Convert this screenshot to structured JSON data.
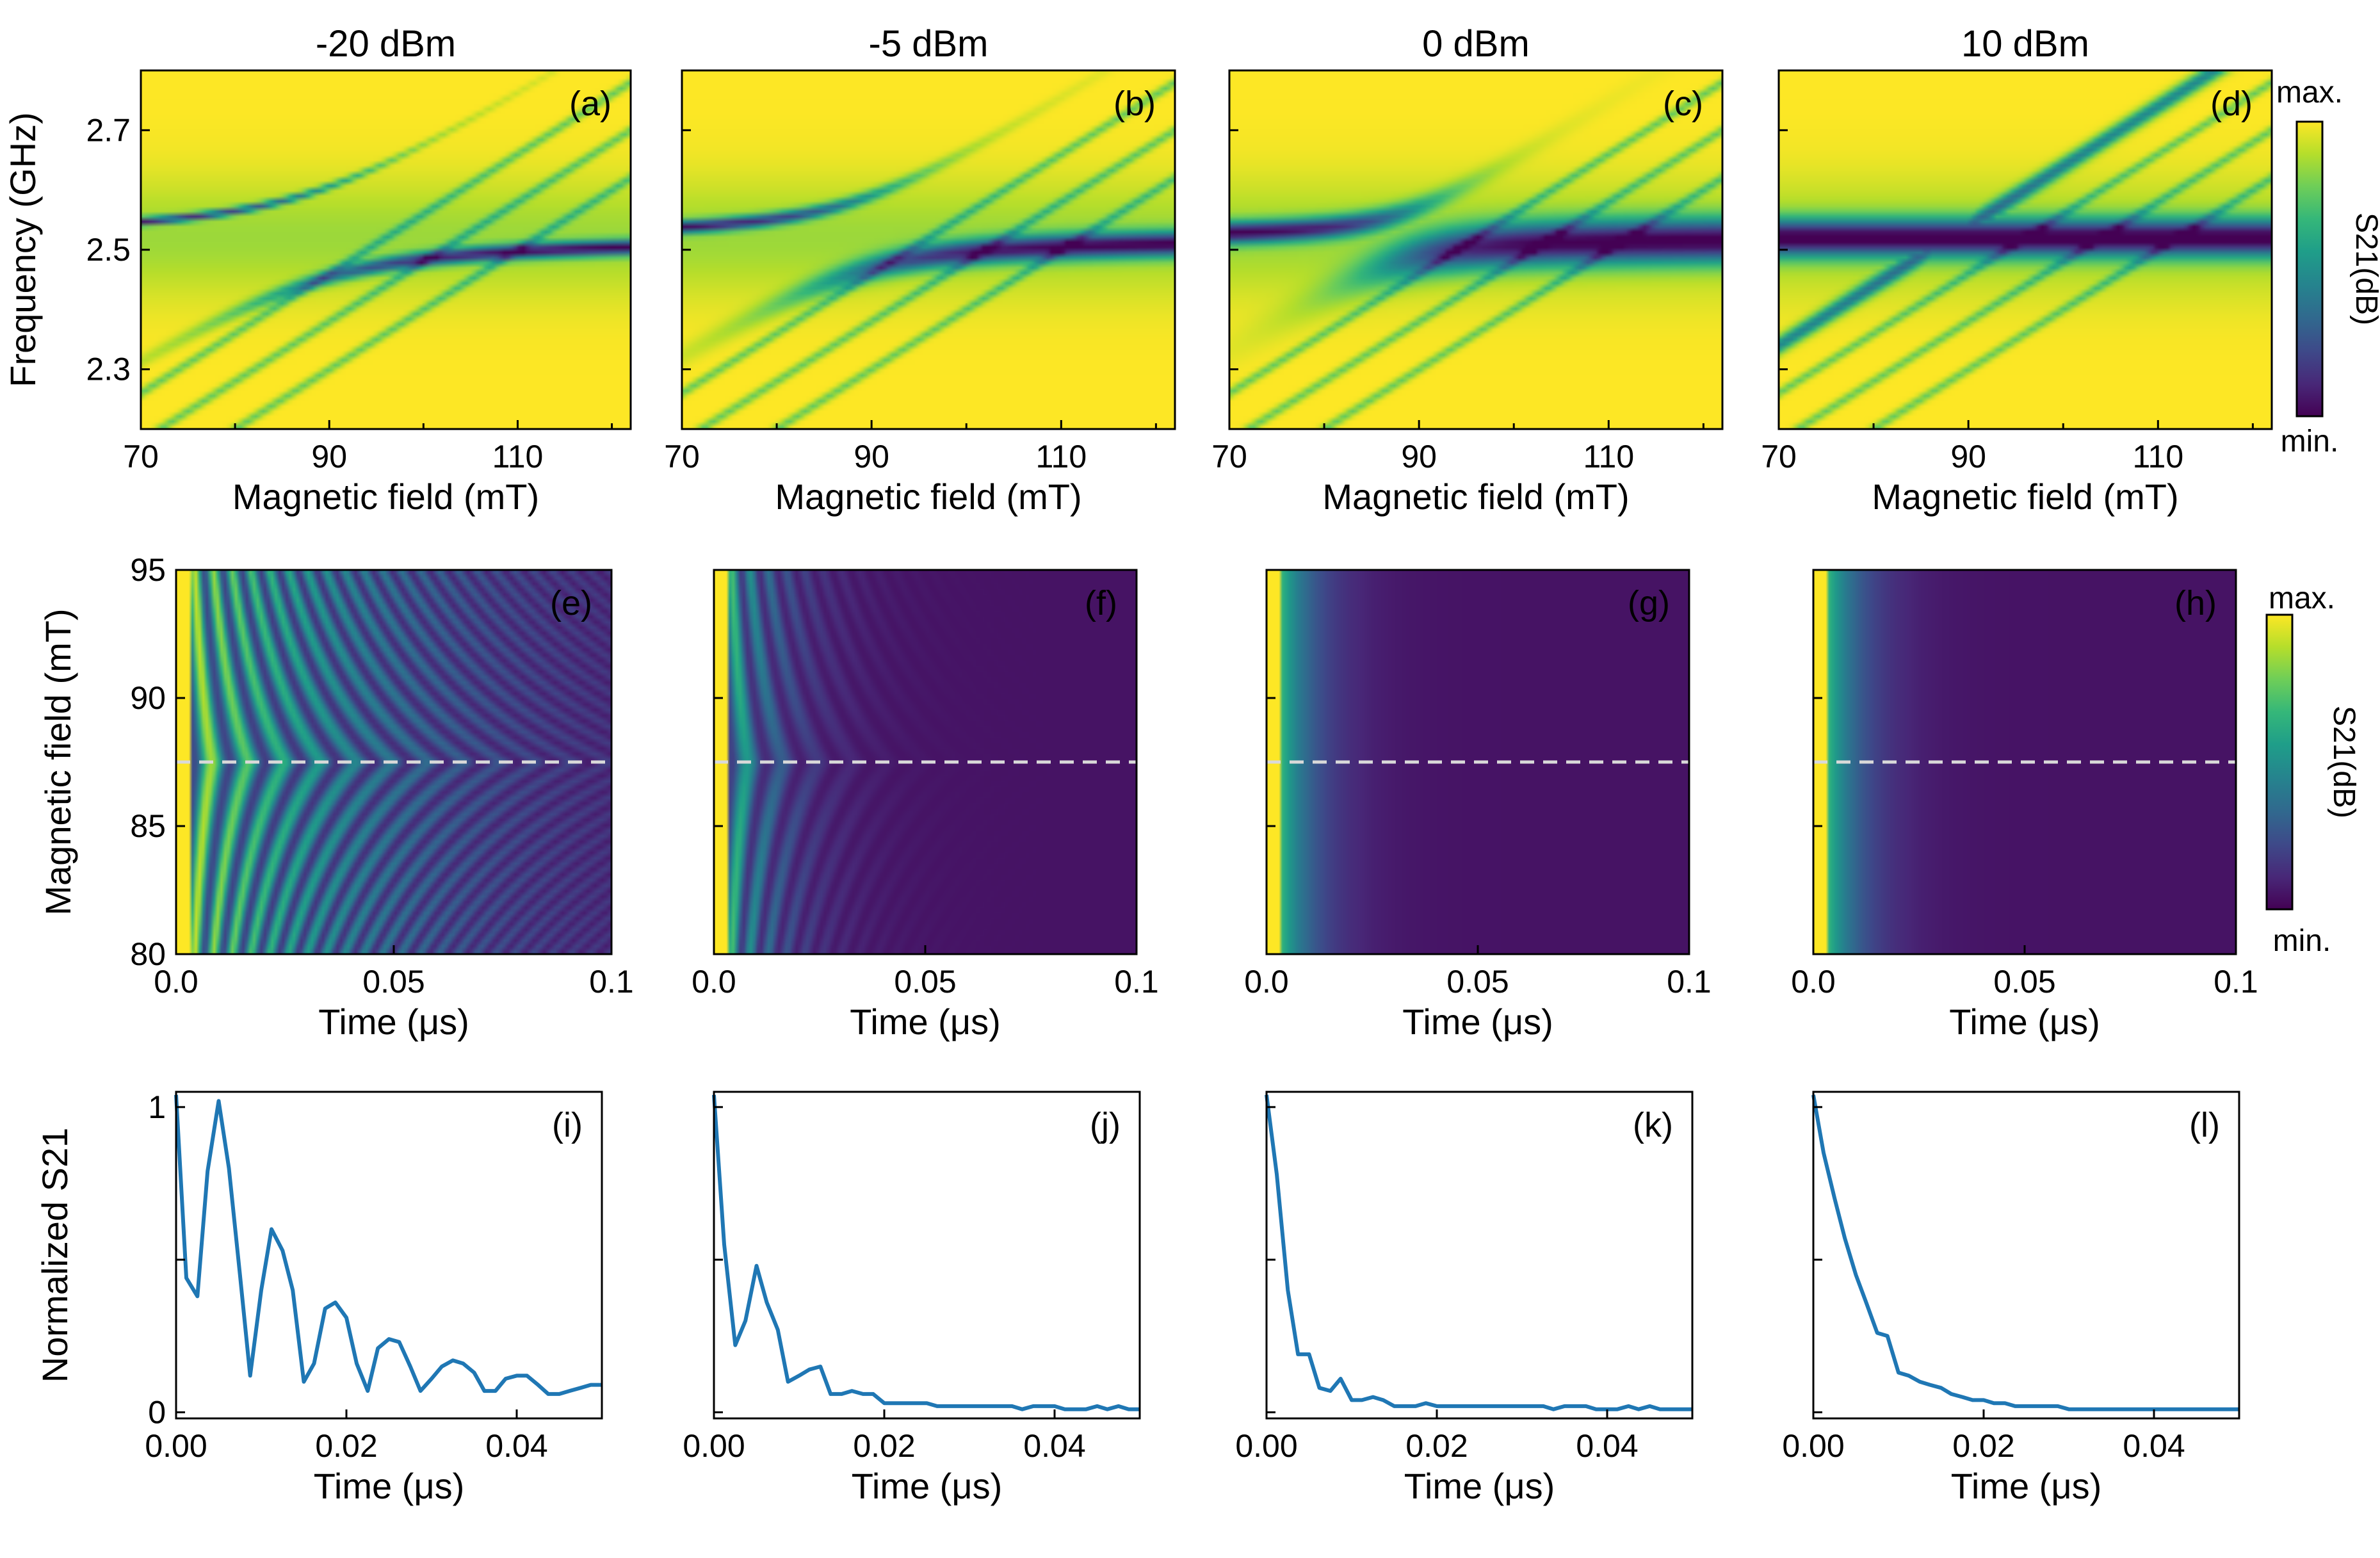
{
  "colors": {
    "cmap": [
      "#440154",
      "#482878",
      "#3e4989",
      "#31688e",
      "#26828e",
      "#1f9e89",
      "#35b779",
      "#6ece58",
      "#b5de2b",
      "#fde725"
    ],
    "line": "#1f77b4",
    "dashed": "#d9d9d9",
    "label_light": "#f4c7a1"
  },
  "chart_data": [
    {
      "type": "heatmap",
      "panel": "(a)",
      "title": "-20 dBm",
      "xlabel": "Magnetic field (mT)",
      "ylabel": "Frequency (GHz)",
      "xlim": [
        70,
        122
      ],
      "ylim": [
        2.2,
        2.8
      ],
      "xticks": [
        "70",
        "90",
        "110"
      ],
      "yticks": [
        "2.3",
        "2.5",
        "2.7"
      ],
      "cavity_frequency_ghz": 2.52,
      "crossing_field_mT": 88,
      "coupling_ghz": 0.075,
      "linewidth": 0.012
    },
    {
      "type": "heatmap",
      "panel": "(b)",
      "title": "-5 dBm",
      "xlabel": "Magnetic field (mT)",
      "ylabel": "",
      "xlim": [
        70,
        122
      ],
      "ylim": [
        2.2,
        2.8
      ],
      "xticks": [
        "70",
        "90",
        "110"
      ],
      "yticks": [],
      "cavity_frequency_ghz": 2.52,
      "crossing_field_mT": 88,
      "coupling_ghz": 0.06,
      "linewidth": 0.02
    },
    {
      "type": "heatmap",
      "panel": "(c)",
      "title": "0 dBm",
      "xlabel": "Magnetic field (mT)",
      "ylabel": "",
      "xlim": [
        70,
        122
      ],
      "ylim": [
        2.2,
        2.8
      ],
      "xticks": [
        "70",
        "90",
        "110"
      ],
      "yticks": [],
      "cavity_frequency_ghz": 2.52,
      "crossing_field_mT": 88,
      "coupling_ghz": 0.04,
      "linewidth": 0.035
    },
    {
      "type": "heatmap",
      "panel": "(d)",
      "title": "10 dBm",
      "xlabel": "Magnetic field (mT)",
      "ylabel": "",
      "xlim": [
        70,
        122
      ],
      "ylim": [
        2.2,
        2.8
      ],
      "xticks": [
        "70",
        "90",
        "110"
      ],
      "yticks": [],
      "cavity_frequency_ghz": 2.52,
      "crossing_field_mT": 88,
      "coupling_ghz": 0.0,
      "linewidth": 0.03
    },
    {
      "type": "heatmap",
      "panel": "(e)",
      "xlabel": "Time (μs)",
      "ylabel": "Magnetic field (mT)",
      "xlim": [
        0,
        0.1
      ],
      "ylim": [
        80,
        95
      ],
      "xticks": [
        "0.0",
        "0.05",
        "0.1"
      ],
      "yticks": [
        "80",
        "85",
        "90",
        "95"
      ],
      "dashed_line_mT": 87.5,
      "decay_us": 0.05,
      "oscillating": true
    },
    {
      "type": "heatmap",
      "panel": "(f)",
      "xlabel": "Time (μs)",
      "ylabel": "",
      "xlim": [
        0,
        0.1
      ],
      "ylim": [
        80,
        95
      ],
      "xticks": [
        "0.0",
        "0.05",
        "0.1"
      ],
      "yticks": [],
      "dashed_line_mT": 87.5,
      "decay_us": 0.012,
      "oscillating": true
    },
    {
      "type": "heatmap",
      "panel": "(g)",
      "xlabel": "Time (μs)",
      "ylabel": "",
      "xlim": [
        0,
        0.1
      ],
      "ylim": [
        80,
        95
      ],
      "xticks": [
        "0.0",
        "0.05",
        "0.1"
      ],
      "yticks": [],
      "dashed_line_mT": 87.5,
      "decay_us": 0.008,
      "oscillating": false
    },
    {
      "type": "heatmap",
      "panel": "(h)",
      "xlabel": "Time (μs)",
      "ylabel": "",
      "xlim": [
        0,
        0.1
      ],
      "ylim": [
        80,
        95
      ],
      "xticks": [
        "0.0",
        "0.05",
        "0.1"
      ],
      "yticks": [],
      "dashed_line_mT": 87.5,
      "decay_us": 0.008,
      "oscillating": false
    },
    {
      "type": "line",
      "panel": "(i)",
      "xlabel": "Time (μs)",
      "ylabel": "Normalized S21",
      "xlim": [
        0,
        0.05
      ],
      "ylim": [
        -0.02,
        1.05
      ],
      "xticks": [
        "0.00",
        "0.02",
        "0.04"
      ],
      "yticks": [
        "0",
        "1"
      ],
      "x": [
        0.0,
        0.0012,
        0.0025,
        0.0037,
        0.005,
        0.0062,
        0.0075,
        0.0087,
        0.01,
        0.0112,
        0.0125,
        0.0137,
        0.015,
        0.0162,
        0.0175,
        0.0187,
        0.02,
        0.0212,
        0.0225,
        0.0237,
        0.025,
        0.0262,
        0.0275,
        0.0287,
        0.03,
        0.0312,
        0.0325,
        0.0337,
        0.035,
        0.0362,
        0.0375,
        0.0387,
        0.04,
        0.0412,
        0.0425,
        0.0437,
        0.045,
        0.0462,
        0.0475,
        0.0487,
        0.05
      ],
      "y": [
        1.04,
        0.44,
        0.38,
        0.79,
        1.02,
        0.8,
        0.45,
        0.12,
        0.4,
        0.6,
        0.53,
        0.4,
        0.1,
        0.16,
        0.34,
        0.36,
        0.31,
        0.16,
        0.07,
        0.21,
        0.24,
        0.23,
        0.15,
        0.07,
        0.11,
        0.15,
        0.17,
        0.16,
        0.13,
        0.07,
        0.07,
        0.11,
        0.12,
        0.12,
        0.09,
        0.06,
        0.06,
        0.07,
        0.08,
        0.09,
        0.09
      ]
    },
    {
      "type": "line",
      "panel": "(j)",
      "xlabel": "Time (μs)",
      "ylabel": "",
      "xlim": [
        0,
        0.05
      ],
      "ylim": [
        -0.02,
        1.05
      ],
      "xticks": [
        "0.00",
        "0.02",
        "0.04"
      ],
      "yticks": [],
      "x": [
        0.0,
        0.0012,
        0.0025,
        0.0037,
        0.005,
        0.0062,
        0.0075,
        0.0087,
        0.01,
        0.0112,
        0.0125,
        0.0137,
        0.015,
        0.0162,
        0.0175,
        0.0187,
        0.02,
        0.0212,
        0.0225,
        0.0237,
        0.025,
        0.0262,
        0.0275,
        0.0287,
        0.03,
        0.0312,
        0.0325,
        0.0337,
        0.035,
        0.0362,
        0.0375,
        0.0387,
        0.04,
        0.0412,
        0.0425,
        0.0437,
        0.045,
        0.0462,
        0.0475,
        0.0487,
        0.05
      ],
      "y": [
        1.04,
        0.55,
        0.22,
        0.3,
        0.48,
        0.36,
        0.27,
        0.1,
        0.12,
        0.14,
        0.15,
        0.06,
        0.06,
        0.07,
        0.06,
        0.06,
        0.03,
        0.03,
        0.03,
        0.03,
        0.03,
        0.02,
        0.02,
        0.02,
        0.02,
        0.02,
        0.02,
        0.02,
        0.02,
        0.01,
        0.02,
        0.02,
        0.02,
        0.01,
        0.01,
        0.01,
        0.02,
        0.01,
        0.02,
        0.01,
        0.01
      ]
    },
    {
      "type": "line",
      "panel": "(k)",
      "xlabel": "Time (μs)",
      "ylabel": "",
      "xlim": [
        0,
        0.05
      ],
      "ylim": [
        -0.02,
        1.05
      ],
      "xticks": [
        "0.00",
        "0.02",
        "0.04"
      ],
      "yticks": [],
      "x": [
        0.0,
        0.0012,
        0.0025,
        0.0037,
        0.005,
        0.0062,
        0.0075,
        0.0087,
        0.01,
        0.0112,
        0.0125,
        0.0137,
        0.015,
        0.0162,
        0.0175,
        0.0187,
        0.02,
        0.0212,
        0.0225,
        0.0237,
        0.025,
        0.0262,
        0.0275,
        0.0287,
        0.03,
        0.0312,
        0.0325,
        0.0337,
        0.035,
        0.0362,
        0.0375,
        0.0387,
        0.04,
        0.0412,
        0.0425,
        0.0437,
        0.045,
        0.0462,
        0.0475,
        0.0487,
        0.05
      ],
      "y": [
        1.04,
        0.78,
        0.4,
        0.19,
        0.19,
        0.08,
        0.07,
        0.11,
        0.04,
        0.04,
        0.05,
        0.04,
        0.02,
        0.02,
        0.02,
        0.03,
        0.02,
        0.02,
        0.02,
        0.02,
        0.02,
        0.02,
        0.02,
        0.02,
        0.02,
        0.02,
        0.02,
        0.01,
        0.02,
        0.02,
        0.02,
        0.01,
        0.01,
        0.01,
        0.02,
        0.01,
        0.02,
        0.01,
        0.01,
        0.01,
        0.01
      ]
    },
    {
      "type": "line",
      "panel": "(l)",
      "xlabel": "Time (μs)",
      "ylabel": "",
      "xlim": [
        0,
        0.05
      ],
      "ylim": [
        -0.02,
        1.05
      ],
      "xticks": [
        "0.00",
        "0.02",
        "0.04"
      ],
      "yticks": [],
      "x": [
        0.0,
        0.0012,
        0.0025,
        0.0037,
        0.005,
        0.0062,
        0.0075,
        0.0087,
        0.01,
        0.0112,
        0.0125,
        0.0137,
        0.015,
        0.0162,
        0.0175,
        0.0187,
        0.02,
        0.0212,
        0.0225,
        0.0237,
        0.025,
        0.0262,
        0.0275,
        0.0287,
        0.03,
        0.0312,
        0.0325,
        0.0337,
        0.035,
        0.0362,
        0.0375,
        0.0387,
        0.04,
        0.0412,
        0.0425,
        0.0437,
        0.045,
        0.0462,
        0.0475,
        0.0487,
        0.05
      ],
      "y": [
        1.04,
        0.85,
        0.7,
        0.57,
        0.45,
        0.36,
        0.26,
        0.25,
        0.13,
        0.12,
        0.1,
        0.09,
        0.08,
        0.06,
        0.05,
        0.04,
        0.04,
        0.03,
        0.03,
        0.02,
        0.02,
        0.02,
        0.02,
        0.02,
        0.01,
        0.01,
        0.01,
        0.01,
        0.01,
        0.01,
        0.01,
        0.01,
        0.01,
        0.01,
        0.01,
        0.01,
        0.01,
        0.01,
        0.01,
        0.01,
        0.01
      ]
    }
  ],
  "colorbars": [
    {
      "label": "S21(dB)",
      "max_label": "max.",
      "min_label": "min."
    },
    {
      "label": "S21(dB)",
      "max_label": "max.",
      "min_label": "min."
    }
  ]
}
